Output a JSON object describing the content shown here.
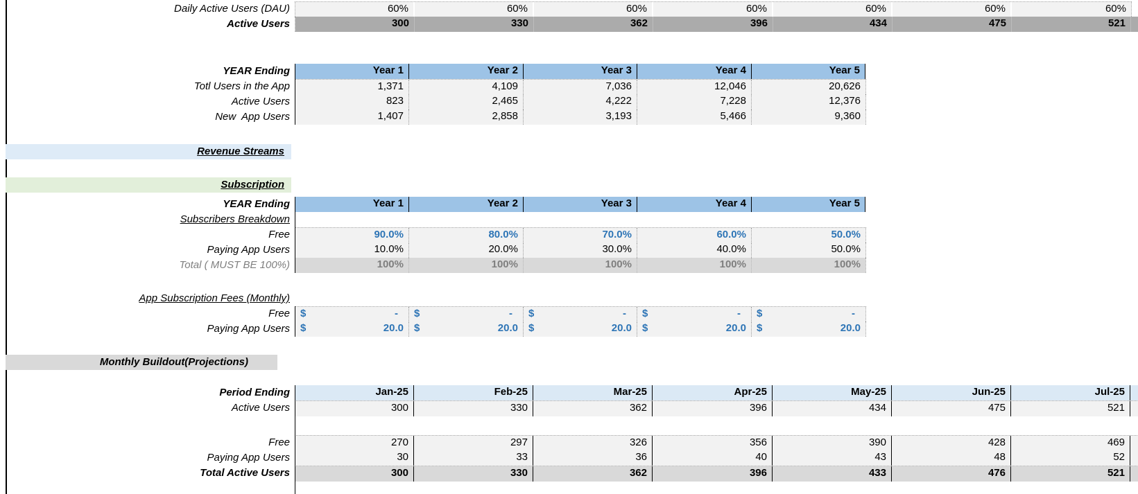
{
  "palette": {
    "year_header_blue": "#9DC3E6",
    "period_header_blue": "#DBE9F5",
    "revenue_band_blue": "#DEEBF7",
    "subscription_band_green": "#E2EFDA",
    "band_gray": "#D9D9D9",
    "dark_row_gray": "#ABABAB",
    "cell_gray": "#F2F2F2",
    "accent_blue_text": "#2E75B6",
    "muted_gray_text": "#7F7F7F"
  },
  "top": {
    "dau": {
      "label": "Daily Active Users (DAU)",
      "values": [
        "60%",
        "60%",
        "60%",
        "60%",
        "60%",
        "60%",
        "60%"
      ]
    },
    "active": {
      "label": "Active Users",
      "values": [
        "300",
        "330",
        "362",
        "396",
        "434",
        "475",
        "521"
      ]
    }
  },
  "yearly": {
    "header": {
      "label": "YEAR Ending",
      "columns": [
        "Year 1",
        "Year 2",
        "Year 3",
        "Year 4",
        "Year 5"
      ]
    },
    "rows": [
      {
        "label": "Totl Users in the App",
        "values": [
          "1,371",
          "4,109",
          "7,036",
          "12,046",
          "20,626"
        ]
      },
      {
        "label": "Active Users",
        "values": [
          "823",
          "2,465",
          "4,222",
          "7,228",
          "12,376"
        ]
      },
      {
        "label": "New  App Users",
        "values": [
          "1,407",
          "2,858",
          "3,193",
          "5,466",
          "9,360"
        ]
      }
    ]
  },
  "sections": {
    "revenue": "Revenue Streams",
    "subscription": "Subscription",
    "monthly": "Monthly Buildout(Projections)"
  },
  "subscription": {
    "header": {
      "label": "YEAR Ending",
      "columns": [
        "Year 1",
        "Year 2",
        "Year 3",
        "Year 4",
        "Year 5"
      ]
    },
    "breakdown_title": "Subscribers Breakdown",
    "rows": [
      {
        "label": "Free",
        "values": [
          "90.0%",
          "80.0%",
          "70.0%",
          "60.0%",
          "50.0%"
        ]
      },
      {
        "label": "Paying App Users",
        "values": [
          "10.0%",
          "20.0%",
          "30.0%",
          "40.0%",
          "50.0%"
        ]
      },
      {
        "label": "Total ( MUST BE 100%)",
        "values": [
          "100%",
          "100%",
          "100%",
          "100%",
          "100%"
        ]
      }
    ],
    "fees_title": "App Subscription Fees (Monthly)",
    "fees": [
      {
        "label": "Free",
        "currency": "$",
        "values": [
          "-",
          "-",
          "-",
          "-",
          "-"
        ]
      },
      {
        "label": "Paying App Users",
        "currency": "$",
        "values": [
          "20.0",
          "20.0",
          "20.0",
          "20.0",
          "20.0"
        ]
      }
    ]
  },
  "monthly": {
    "header": {
      "label": "Period Ending",
      "columns": [
        "Jan-25",
        "Feb-25",
        "Mar-25",
        "Apr-25",
        "May-25",
        "Jun-25",
        "Jul-25"
      ]
    },
    "active": {
      "label": "Active Users",
      "values": [
        "300",
        "330",
        "362",
        "396",
        "434",
        "475",
        "521"
      ]
    },
    "rows": [
      {
        "label": "Free",
        "values": [
          "270",
          "297",
          "326",
          "356",
          "390",
          "428",
          "469"
        ]
      },
      {
        "label": "Paying App Users",
        "values": [
          "30",
          "33",
          "36",
          "40",
          "43",
          "48",
          "52"
        ]
      },
      {
        "label": "Total Active Users",
        "values": [
          "300",
          "330",
          "362",
          "396",
          "433",
          "476",
          "521"
        ]
      }
    ]
  }
}
